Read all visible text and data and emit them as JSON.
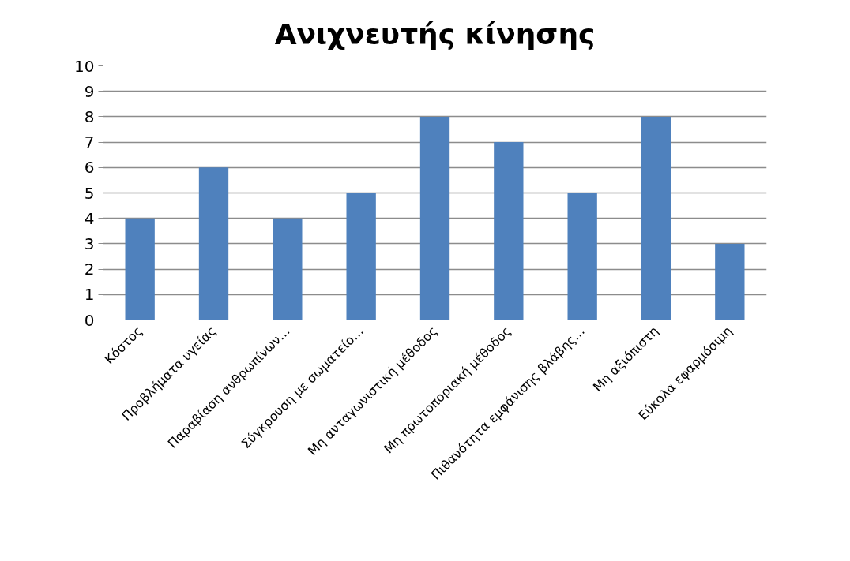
{
  "chart_data": {
    "type": "bar",
    "title": "Ανιχνευτής κίνησης",
    "categories": [
      "Κόστος",
      "Προβλήματα υγείας",
      "Παραβίαση ανθρωπίνων…",
      "Σύγκρουση με σωματείο…",
      "Μη ανταγωνιστική μέθοδος",
      "Μη πρωτοποριακή μέθοδος",
      "Πιθανότητα εμφάνισης βλάβης…",
      "Μη αξιόπιστη",
      "Εύκολα εφαρμόσιμη"
    ],
    "values": [
      4,
      6,
      4,
      5,
      8,
      7,
      5,
      8,
      3
    ],
    "color": "#4f81bd",
    "ylim": [
      0,
      10
    ],
    "yticks": [
      0,
      1,
      2,
      3,
      4,
      5,
      6,
      7,
      8,
      9,
      10
    ],
    "grid": "y"
  }
}
